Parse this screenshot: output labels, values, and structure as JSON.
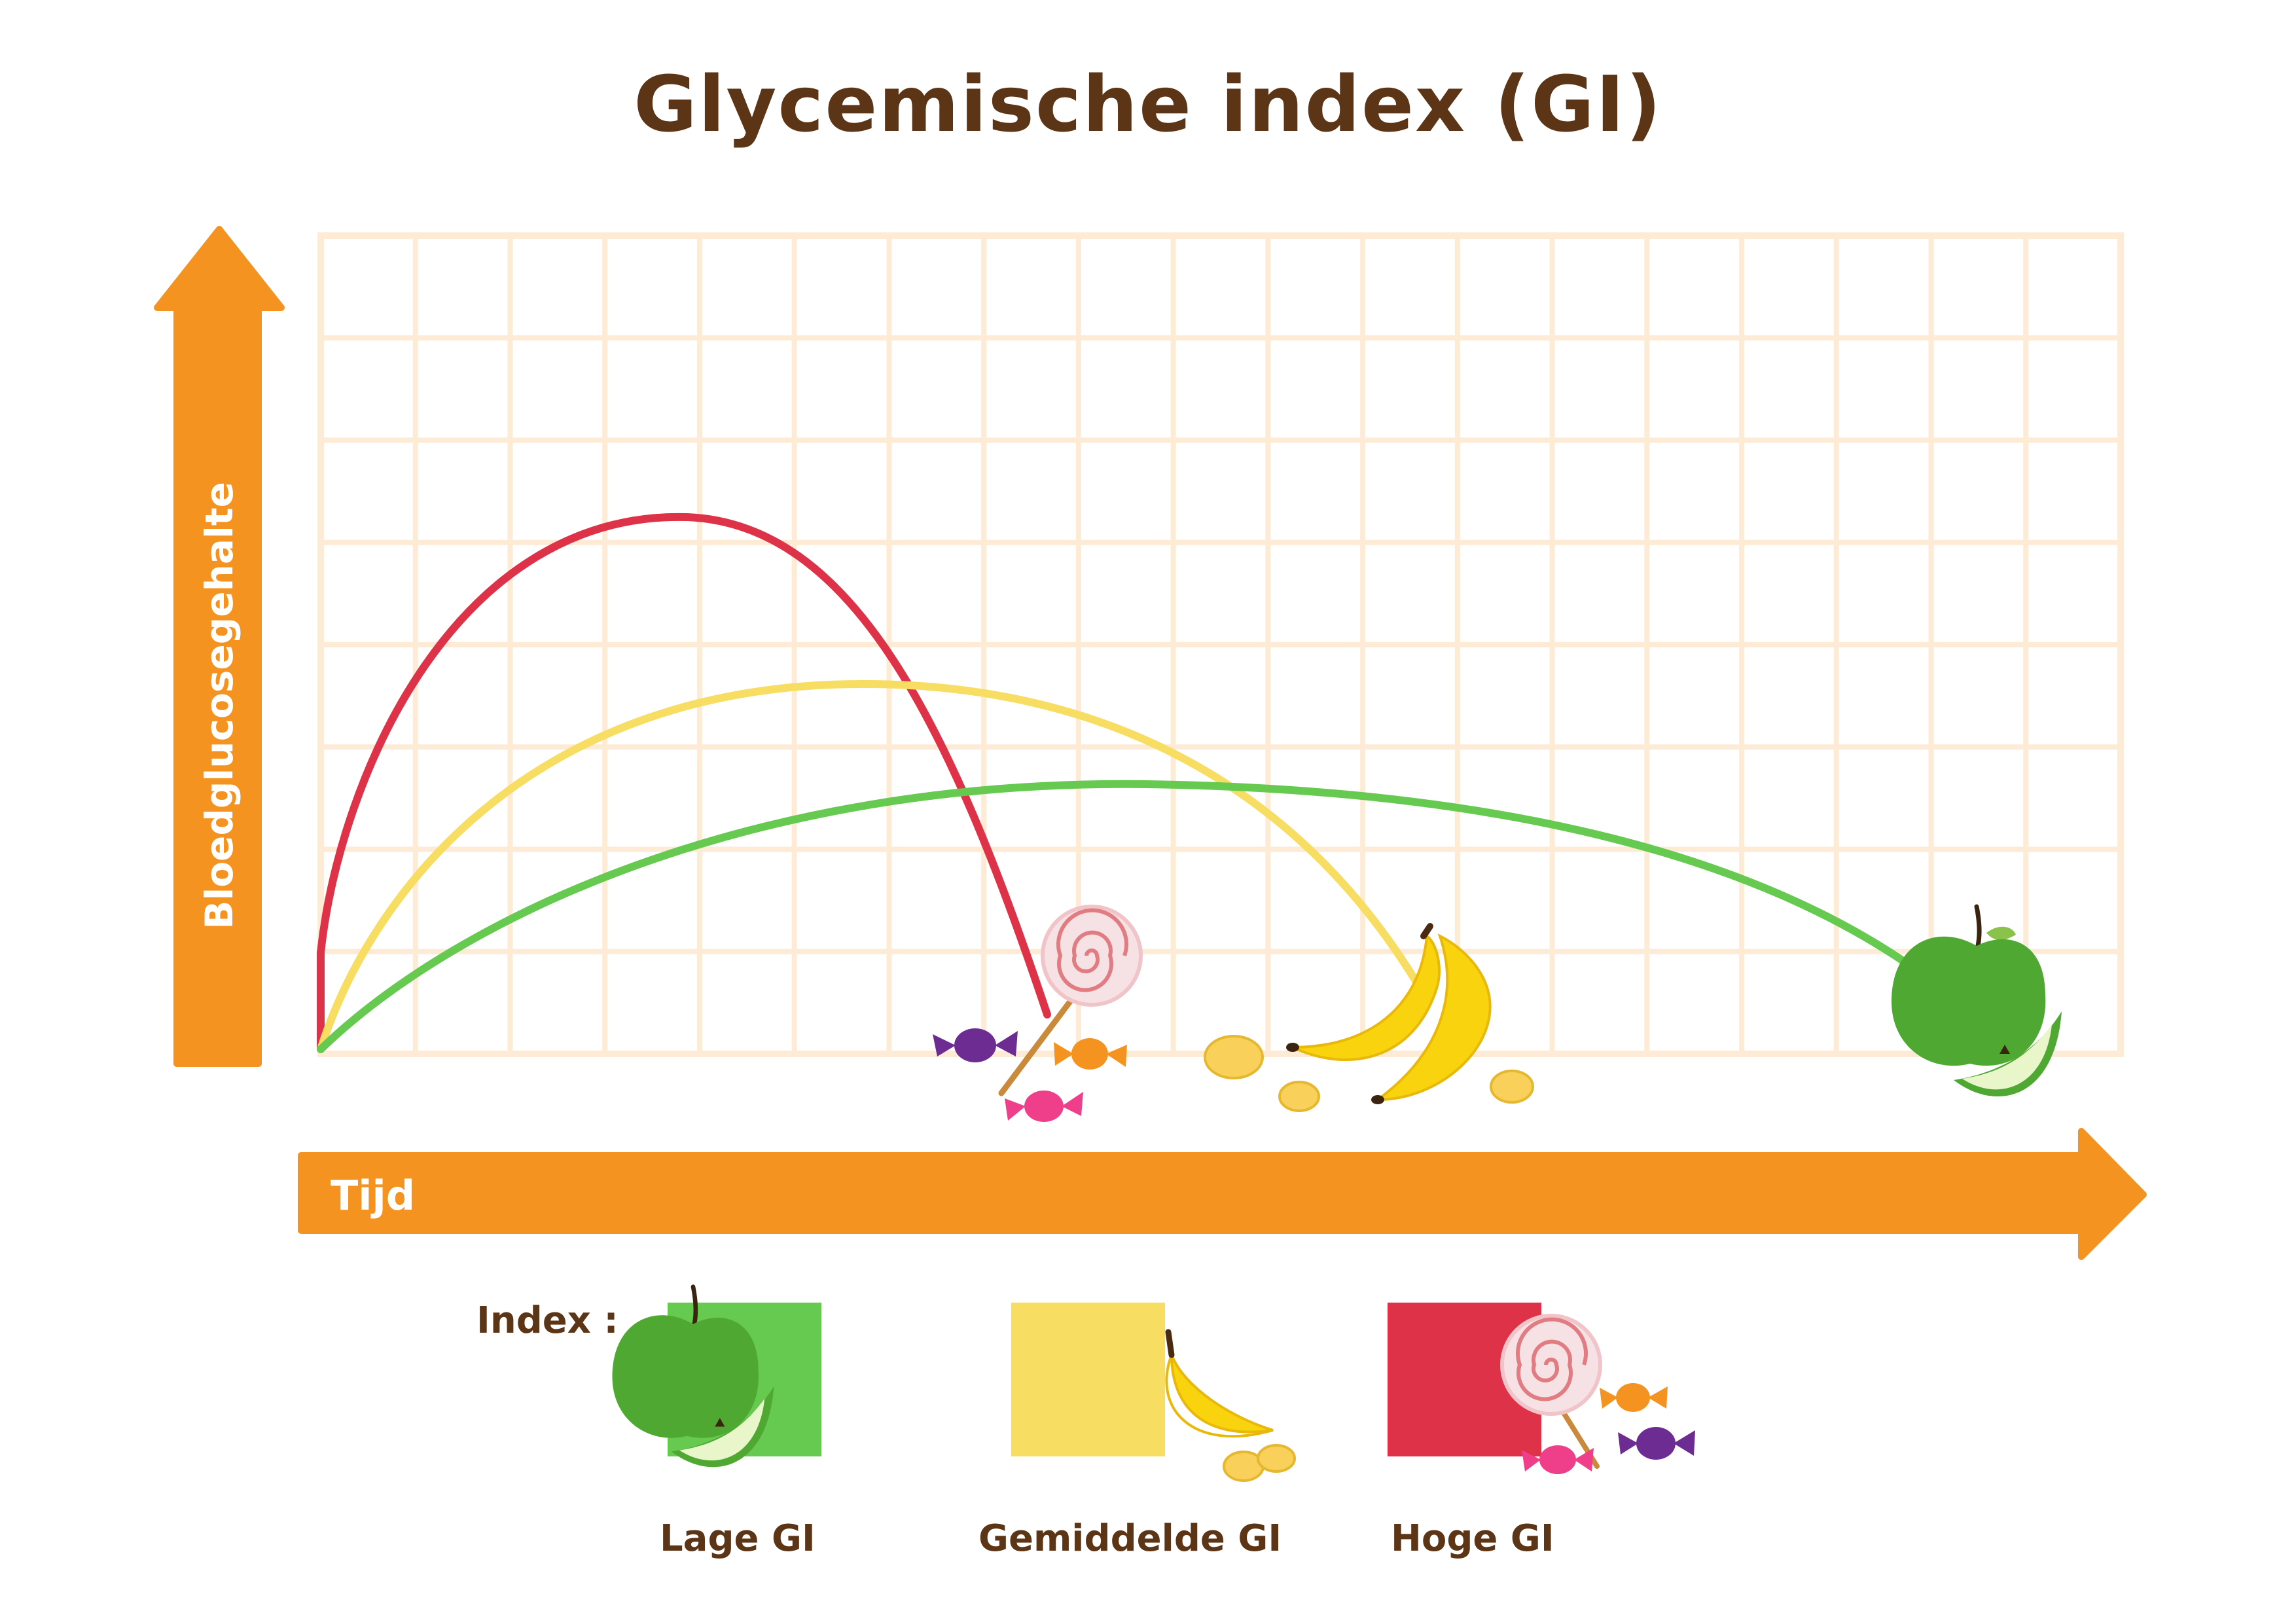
{
  "title": "Glycemische index (GI)",
  "axes": {
    "y_label": "Bloedglucosegehalte",
    "x_label": "Tijd"
  },
  "legend": {
    "heading": "Index :",
    "items": [
      {
        "label": "Lage GI",
        "color": "#66c950",
        "icon": "apple-icon"
      },
      {
        "label": "Gemiddelde GI",
        "color": "#f7dd62",
        "icon": "banana-icon"
      },
      {
        "label": "Hoge GI",
        "color": "#dd3247",
        "icon": "candy-icon"
      }
    ]
  },
  "curves": [
    {
      "series": "Hoge GI",
      "color": "#dd3247"
    },
    {
      "series": "Gemiddelde GI",
      "color": "#f7dd62"
    },
    {
      "series": "Lage GI",
      "color": "#66c950"
    }
  ],
  "colors": {
    "axis": "#f4931f",
    "grid": "#fdebd6",
    "text": "#5c3416"
  }
}
